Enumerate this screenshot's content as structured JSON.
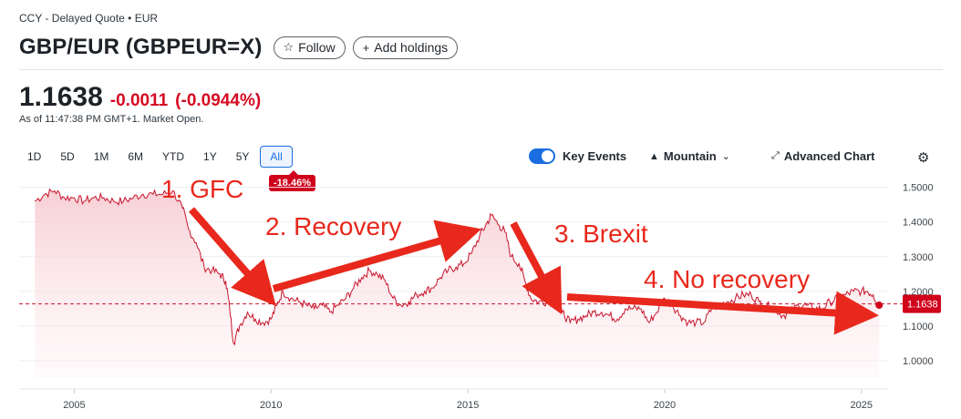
{
  "header": {
    "meta": "CCY - Delayed Quote • EUR",
    "title": "GBP/EUR (GBPEUR=X)",
    "follow_label": "Follow",
    "add_holdings_label": "Add holdings"
  },
  "quote": {
    "price": "1.1638",
    "change": "-0.0011",
    "change_pct": "(-0.0944%)",
    "as_of": "As of 11:47:38 PM GMT+1. Market Open."
  },
  "ranges": [
    "1D",
    "5D",
    "1M",
    "6M",
    "YTD",
    "1Y",
    "5Y",
    "All"
  ],
  "active_range": "All",
  "performance_badge": "-18.46%",
  "controls": {
    "key_events_label": "Key Events",
    "key_events_on": true,
    "chart_type_label": "Mountain",
    "advanced_label": "Advanced Chart"
  },
  "icons": {
    "follow": "star-icon",
    "add": "plus-icon",
    "chart_type": "mountain-icon",
    "advanced": "expand-icon",
    "settings": "gear-icon",
    "dropdown": "chevron-down-icon"
  },
  "colors": {
    "line": "#c8162e",
    "fill_top": "#f6c7cd",
    "negative": "#d60a22",
    "accent": "#1a6ee0",
    "annotation": "#e8281c"
  },
  "chart_data": {
    "type": "area",
    "x_unit": "year",
    "x": [
      2004.0,
      2004.25,
      2004.5,
      2004.75,
      2005.0,
      2005.25,
      2005.5,
      2005.75,
      2006.0,
      2006.25,
      2006.5,
      2006.75,
      2007.0,
      2007.25,
      2007.5,
      2007.75,
      2007.9,
      2008.1,
      2008.3,
      2008.5,
      2008.7,
      2008.85,
      2008.95,
      2009.05,
      2009.2,
      2009.4,
      2009.6,
      2009.8,
      2010.0,
      2010.15,
      2010.3,
      2010.5,
      2010.7,
      2010.9,
      2011.1,
      2011.3,
      2011.5,
      2011.7,
      2011.9,
      2012.1,
      2012.3,
      2012.5,
      2012.7,
      2012.9,
      2013.1,
      2013.3,
      2013.5,
      2013.7,
      2013.9,
      2014.1,
      2014.3,
      2014.5,
      2014.7,
      2014.9,
      2015.1,
      2015.3,
      2015.45,
      2015.6,
      2015.8,
      2015.95,
      2016.1,
      2016.3,
      2016.45,
      2016.6,
      2016.8,
      2017.0,
      2017.2,
      2017.4,
      2017.6,
      2017.8,
      2018.0,
      2018.2,
      2018.4,
      2018.6,
      2018.8,
      2019.0,
      2019.2,
      2019.4,
      2019.6,
      2019.8,
      2020.0,
      2020.2,
      2020.4,
      2020.6,
      2020.8,
      2021.0,
      2021.2,
      2021.4,
      2021.6,
      2021.8,
      2022.0,
      2022.2,
      2022.4,
      2022.6,
      2022.8,
      2023.0,
      2023.2,
      2023.4,
      2023.6,
      2023.8,
      2024.0,
      2024.2,
      2024.4,
      2024.6,
      2024.8,
      2025.0,
      2025.15,
      2025.3,
      2025.45
    ],
    "y": [
      1.46,
      1.48,
      1.49,
      1.47,
      1.47,
      1.46,
      1.47,
      1.47,
      1.46,
      1.46,
      1.47,
      1.48,
      1.48,
      1.48,
      1.49,
      1.44,
      1.38,
      1.34,
      1.27,
      1.26,
      1.25,
      1.23,
      1.15,
      1.05,
      1.1,
      1.14,
      1.12,
      1.11,
      1.12,
      1.16,
      1.2,
      1.18,
      1.17,
      1.16,
      1.15,
      1.16,
      1.14,
      1.16,
      1.18,
      1.21,
      1.24,
      1.26,
      1.25,
      1.23,
      1.18,
      1.16,
      1.17,
      1.19,
      1.2,
      1.21,
      1.24,
      1.26,
      1.27,
      1.28,
      1.31,
      1.36,
      1.39,
      1.42,
      1.39,
      1.37,
      1.3,
      1.28,
      1.23,
      1.18,
      1.17,
      1.17,
      1.17,
      1.14,
      1.11,
      1.12,
      1.13,
      1.14,
      1.14,
      1.13,
      1.12,
      1.15,
      1.15,
      1.15,
      1.11,
      1.14,
      1.18,
      1.16,
      1.13,
      1.11,
      1.11,
      1.11,
      1.15,
      1.16,
      1.17,
      1.18,
      1.19,
      1.19,
      1.17,
      1.16,
      1.15,
      1.13,
      1.14,
      1.16,
      1.16,
      1.15,
      1.15,
      1.17,
      1.18,
      1.19,
      1.2,
      1.2,
      1.2,
      1.19,
      1.16
    ],
    "ylim": [
      0.95,
      1.52
    ],
    "xlim": [
      2003.6,
      2025.7
    ],
    "yticks": [
      "1.0000",
      "1.1000",
      "1.2000",
      "1.3000",
      "1.4000",
      "1.5000"
    ],
    "ytick_values": [
      1.0,
      1.1,
      1.2,
      1.3,
      1.4,
      1.5
    ],
    "xticks": [
      "2005",
      "2010",
      "2015",
      "2020",
      "2025"
    ],
    "xtick_values": [
      2005,
      2010,
      2015,
      2020,
      2025
    ],
    "reference_line": 1.1638,
    "last_label": "1.1638",
    "annotations": [
      {
        "id": "gfc",
        "text": "1. GFC"
      },
      {
        "id": "recovery",
        "text": "2. Recovery"
      },
      {
        "id": "brexit",
        "text": "3. Brexit"
      },
      {
        "id": "no-recovery",
        "text": "4. No recovery"
      }
    ]
  }
}
